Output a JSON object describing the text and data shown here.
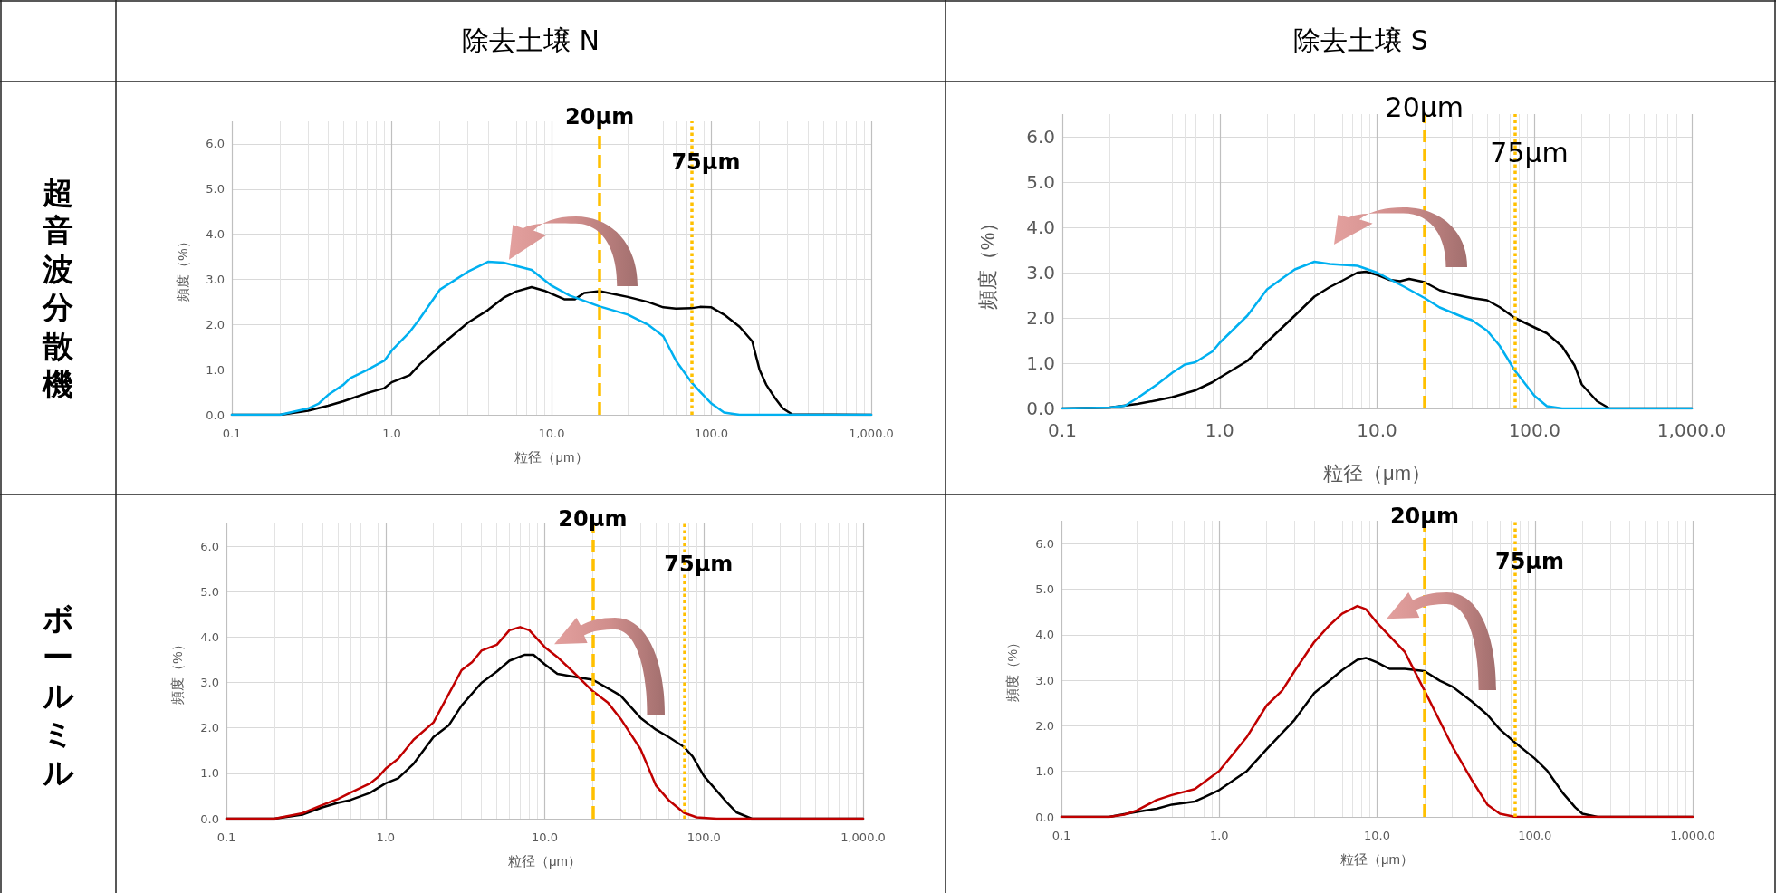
{
  "chart_data": [
    {
      "type": "line",
      "title": "除去土壌 N",
      "annotations": [
        "超音波分散機"
      ],
      "xlabel": "粒径（μm）",
      "ylabel": "頻度（%）",
      "log": "x",
      "grid": true,
      "marker": "none",
      "xlim": [
        0.1,
        1000
      ],
      "xticks": [
        {
          "value": 0.1,
          "label": "0.1"
        },
        {
          "value": 1,
          "label": "1.0"
        },
        {
          "value": 10,
          "label": "10.0"
        },
        {
          "value": 100,
          "label": "100.0"
        },
        {
          "value": 1000,
          "label": "1,000.0"
        }
      ],
      "ylim": [
        0,
        6.5
      ],
      "yticks": [
        {
          "value": 0,
          "label": "0.0"
        },
        {
          "value": 1,
          "label": "1.0"
        },
        {
          "value": 2,
          "label": "2.0"
        },
        {
          "value": 3,
          "label": "3.0"
        },
        {
          "value": 4,
          "label": "4.0"
        },
        {
          "value": 5,
          "label": "5.0"
        },
        {
          "value": 6,
          "label": "6.0"
        }
      ],
      "ref_lines": [
        {
          "axis": "x",
          "value": 20,
          "label": "20μm",
          "color": "#ffc000",
          "line_style": "dashed"
        },
        {
          "axis": "x",
          "value": 75,
          "label": "75μm",
          "color": "#ffc000",
          "line_style": "dotted"
        }
      ],
      "series": [
        {
          "color": "#000000",
          "x": [
            0.1,
            0.2,
            0.3,
            0.4,
            0.5,
            0.7,
            0.9,
            1,
            1.3,
            1.5,
            2,
            3,
            4,
            5,
            6,
            7.5,
            9,
            10,
            12,
            14,
            16,
            20,
            25,
            30,
            40,
            50,
            60,
            75,
            85,
            100,
            120,
            150,
            180,
            200,
            220,
            250,
            280,
            320,
            1000
          ],
          "values": [
            0,
            0,
            0.09,
            0.2,
            0.3,
            0.48,
            0.59,
            0.72,
            0.88,
            1.12,
            1.52,
            2.04,
            2.32,
            2.59,
            2.73,
            2.83,
            2.75,
            2.68,
            2.56,
            2.56,
            2.7,
            2.74,
            2.67,
            2.61,
            2.5,
            2.38,
            2.35,
            2.36,
            2.39,
            2.38,
            2.22,
            1.95,
            1.63,
            1.0,
            0.67,
            0.37,
            0.14,
            0.01,
            0
          ]
        },
        {
          "color": "#00b0f0",
          "x": [
            0.1,
            0.2,
            0.3,
            0.35,
            0.4,
            0.5,
            0.55,
            0.7,
            0.9,
            1,
            1.3,
            1.5,
            2,
            3,
            4,
            5,
            7.5,
            10,
            13,
            20,
            30,
            40,
            50,
            60,
            75,
            85,
            100,
            120,
            150,
            1000
          ],
          "values": [
            0,
            0,
            0.14,
            0.25,
            0.44,
            0.67,
            0.81,
            0.99,
            1.2,
            1.42,
            1.84,
            2.13,
            2.77,
            3.17,
            3.39,
            3.37,
            3.21,
            2.86,
            2.64,
            2.4,
            2.22,
            2.0,
            1.74,
            1.2,
            0.72,
            0.51,
            0.25,
            0.05,
            0,
            0
          ]
        }
      ]
    },
    {
      "type": "line",
      "title": "除去土壌 S",
      "xlabel": "粒径（μm）",
      "ylabel": "頻度（%）",
      "log": "x",
      "grid": true,
      "marker": "none",
      "xlim": [
        0.1,
        1000
      ],
      "xticks": [
        {
          "value": 0.1,
          "label": "0.1"
        },
        {
          "value": 1,
          "label": "1.0"
        },
        {
          "value": 10,
          "label": "10.0"
        },
        {
          "value": 100,
          "label": "100.0"
        },
        {
          "value": 1000,
          "label": "1,000.0"
        }
      ],
      "ylim": [
        0,
        6.5
      ],
      "yticks": [
        {
          "value": 0,
          "label": "0.0"
        },
        {
          "value": 1,
          "label": "1.0"
        },
        {
          "value": 2,
          "label": "2.0"
        },
        {
          "value": 3,
          "label": "3.0"
        },
        {
          "value": 4,
          "label": "4.0"
        },
        {
          "value": 5,
          "label": "5.0"
        },
        {
          "value": 6,
          "label": "6.0"
        }
      ],
      "ref_lines": [
        {
          "axis": "x",
          "value": 20,
          "label": "20μm",
          "color": "#ffc000",
          "line_style": "dashed"
        },
        {
          "axis": "x",
          "value": 75,
          "label": "75μm",
          "color": "#ffc000",
          "line_style": "dotted"
        }
      ],
      "series": [
        {
          "color": "#000000",
          "x": [
            0.1,
            0.2,
            0.3,
            0.4,
            0.5,
            0.7,
            0.9,
            1,
            1.5,
            2,
            3,
            4,
            5,
            6,
            7.5,
            8.5,
            10,
            12,
            14,
            16,
            20,
            25,
            30,
            40,
            50,
            60,
            75,
            100,
            120,
            150,
            180,
            200,
            250,
            300,
            1000
          ],
          "values": [
            0,
            0.02,
            0.1,
            0.18,
            0.25,
            0.4,
            0.58,
            0.68,
            1.05,
            1.47,
            2.05,
            2.47,
            2.68,
            2.82,
            3.0,
            3.02,
            2.95,
            2.84,
            2.81,
            2.86,
            2.79,
            2.61,
            2.53,
            2.44,
            2.39,
            2.24,
            2.0,
            1.79,
            1.66,
            1.37,
            0.95,
            0.53,
            0.16,
            0,
            0
          ]
        },
        {
          "color": "#00b0f0",
          "x": [
            0.1,
            0.2,
            0.25,
            0.3,
            0.4,
            0.5,
            0.6,
            0.7,
            0.9,
            1,
            1.5,
            2,
            3,
            4,
            5,
            7.5,
            10,
            15,
            20,
            25,
            35,
            40,
            50,
            60,
            75,
            100,
            120,
            150,
            1000
          ],
          "values": [
            0,
            0.02,
            0.06,
            0.23,
            0.53,
            0.79,
            0.97,
            1.02,
            1.26,
            1.45,
            2.05,
            2.63,
            3.07,
            3.24,
            3.19,
            3.15,
            3.0,
            2.68,
            2.44,
            2.23,
            2.02,
            1.95,
            1.72,
            1.39,
            0.84,
            0.28,
            0.05,
            0,
            0
          ]
        }
      ]
    },
    {
      "type": "line",
      "annotations": [
        "ボールミル"
      ],
      "xlabel": "粒径（μm）",
      "ylabel": "頻度（%）",
      "log": "x",
      "grid": true,
      "marker": "none",
      "xlim": [
        0.1,
        1000
      ],
      "xticks": [
        {
          "value": 0.1,
          "label": "0.1"
        },
        {
          "value": 1,
          "label": "1.0"
        },
        {
          "value": 10,
          "label": "10.0"
        },
        {
          "value": 100,
          "label": "100.0"
        },
        {
          "value": 1000,
          "label": "1,000.0"
        }
      ],
      "ylim": [
        0,
        6.5
      ],
      "yticks": [
        {
          "value": 0,
          "label": "0.0"
        },
        {
          "value": 1,
          "label": "1.0"
        },
        {
          "value": 2,
          "label": "2.0"
        },
        {
          "value": 3,
          "label": "3.0"
        },
        {
          "value": 4,
          "label": "4.0"
        },
        {
          "value": 5,
          "label": "5.0"
        },
        {
          "value": 6,
          "label": "6.0"
        }
      ],
      "ref_lines": [
        {
          "axis": "x",
          "value": 20,
          "label": "20μm",
          "color": "#ffc000",
          "line_style": "dashed"
        },
        {
          "axis": "x",
          "value": 75,
          "label": "75μm",
          "color": "#ffc000",
          "line_style": "dotted"
        }
      ],
      "series": [
        {
          "color": "#000000",
          "x": [
            0.1,
            0.2,
            0.3,
            0.4,
            0.5,
            0.6,
            0.8,
            1,
            1.2,
            1.5,
            2,
            2.5,
            3,
            4,
            5,
            6,
            7.5,
            8.5,
            10,
            12,
            15,
            20,
            25,
            30,
            40,
            50,
            60,
            75,
            85,
            100,
            120,
            140,
            160,
            200,
            1000
          ],
          "values": [
            0,
            0,
            0.09,
            0.25,
            0.35,
            0.41,
            0.57,
            0.78,
            0.89,
            1.21,
            1.8,
            2.06,
            2.49,
            2.99,
            3.24,
            3.48,
            3.61,
            3.61,
            3.4,
            3.19,
            3.13,
            3.06,
            2.87,
            2.71,
            2.22,
            1.96,
            1.8,
            1.58,
            1.37,
            0.94,
            0.62,
            0.35,
            0.14,
            0,
            0
          ]
        },
        {
          "color": "#c00000",
          "x": [
            0.1,
            0.2,
            0.3,
            0.4,
            0.5,
            0.6,
            0.8,
            0.9,
            1,
            1.2,
            1.5,
            2,
            3,
            3.5,
            4,
            5,
            6,
            7,
            8,
            10,
            12,
            15,
            20,
            25,
            30,
            40,
            50,
            60,
            75,
            90,
            120,
            1000
          ],
          "values": [
            0,
            0,
            0.12,
            0.3,
            0.43,
            0.57,
            0.78,
            0.92,
            1.1,
            1.32,
            1.74,
            2.12,
            3.27,
            3.45,
            3.7,
            3.83,
            4.15,
            4.22,
            4.15,
            3.78,
            3.56,
            3.24,
            2.81,
            2.55,
            2.2,
            1.53,
            0.73,
            0.41,
            0.13,
            0.03,
            0,
            0
          ]
        }
      ]
    },
    {
      "type": "line",
      "xlabel": "粒径（μm）",
      "ylabel": "頻度（%）",
      "log": "x",
      "grid": true,
      "marker": "none",
      "xlim": [
        0.1,
        1000
      ],
      "xticks": [
        {
          "value": 0.1,
          "label": "0.1"
        },
        {
          "value": 1,
          "label": "1.0"
        },
        {
          "value": 10,
          "label": "10.0"
        },
        {
          "value": 100,
          "label": "100.0"
        },
        {
          "value": 1000,
          "label": "1,000.0"
        }
      ],
      "ylim": [
        0,
        6.5
      ],
      "yticks": [
        {
          "value": 0,
          "label": "0.0"
        },
        {
          "value": 1,
          "label": "1.0"
        },
        {
          "value": 2,
          "label": "2.0"
        },
        {
          "value": 3,
          "label": "3.0"
        },
        {
          "value": 4,
          "label": "4.0"
        },
        {
          "value": 5,
          "label": "5.0"
        },
        {
          "value": 6,
          "label": "6.0"
        }
      ],
      "ref_lines": [
        {
          "axis": "x",
          "value": 20,
          "label": "20μm",
          "color": "#ffc000",
          "line_style": "dashed"
        },
        {
          "axis": "x",
          "value": 75,
          "label": "75μm",
          "color": "#ffc000",
          "line_style": "dotted"
        }
      ],
      "series": [
        {
          "color": "#000000",
          "x": [
            0.1,
            0.2,
            0.3,
            0.4,
            0.5,
            0.7,
            0.8,
            1,
            1.5,
            2,
            3,
            4,
            5,
            6,
            7.5,
            8.5,
            10,
            12,
            15,
            20,
            25,
            30,
            40,
            50,
            60,
            75,
            100,
            120,
            150,
            180,
            200,
            250,
            1000
          ],
          "values": [
            0,
            0,
            0.11,
            0.18,
            0.27,
            0.34,
            0.43,
            0.59,
            1.01,
            1.49,
            2.13,
            2.72,
            2.99,
            3.22,
            3.45,
            3.49,
            3.39,
            3.25,
            3.25,
            3.2,
            2.99,
            2.86,
            2.53,
            2.24,
            1.92,
            1.63,
            1.28,
            1.01,
            0.53,
            0.21,
            0.07,
            0,
            0
          ]
        },
        {
          "color": "#c00000",
          "x": [
            0.1,
            0.2,
            0.25,
            0.3,
            0.4,
            0.5,
            0.7,
            1,
            1.5,
            2,
            2.5,
            3,
            4,
            5,
            6,
            7.5,
            8.5,
            10,
            15,
            20,
            30,
            40,
            50,
            60,
            75,
            1000
          ],
          "values": [
            0,
            0,
            0.05,
            0.14,
            0.37,
            0.48,
            0.61,
            1.01,
            1.76,
            2.45,
            2.77,
            3.2,
            3.84,
            4.21,
            4.46,
            4.63,
            4.56,
            4.26,
            3.62,
            2.77,
            1.55,
            0.8,
            0.27,
            0.07,
            0,
            0
          ]
        }
      ]
    }
  ]
}
